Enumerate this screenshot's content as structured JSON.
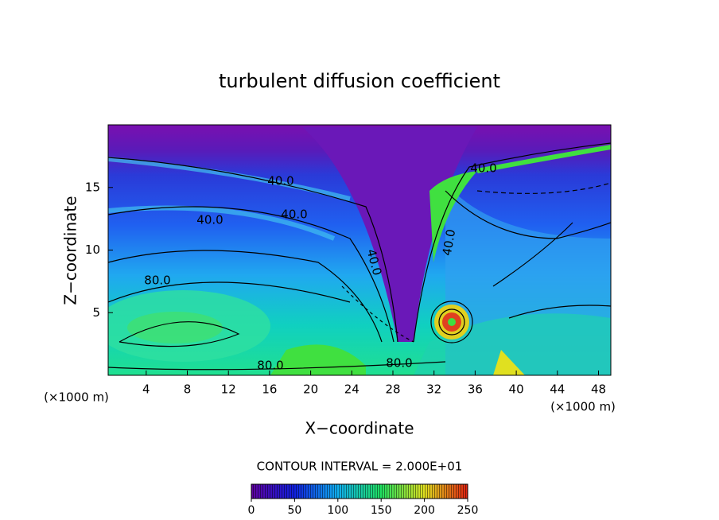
{
  "chart_data": {
    "type": "contour",
    "title": "turbulent diffusion coefficient",
    "x_label": "X−coordinate",
    "y_label": "Z−coordinate",
    "x_unit_label": "(×1000 m)",
    "x_unit_label_right": "(×1000 m)",
    "contour_interval": "CONTOUR INTERVAL = 2.000E+01",
    "xlim": [
      0.3,
      49.2
    ],
    "xticks": [
      4,
      8,
      12,
      16,
      20,
      24,
      28,
      32,
      36,
      40,
      44,
      48
    ],
    "ylim": [
      0,
      20
    ],
    "yticks": [
      5,
      10,
      15
    ],
    "colorbar_lim": [
      0,
      250
    ],
    "colorbar_ticks": [
      0,
      50,
      100,
      150,
      200,
      250
    ],
    "contour_labels": [
      "40.0",
      "40.0",
      "40.0",
      "80.0",
      "80.0",
      "80.0",
      "40.0",
      "40.0",
      "40.0"
    ]
  }
}
